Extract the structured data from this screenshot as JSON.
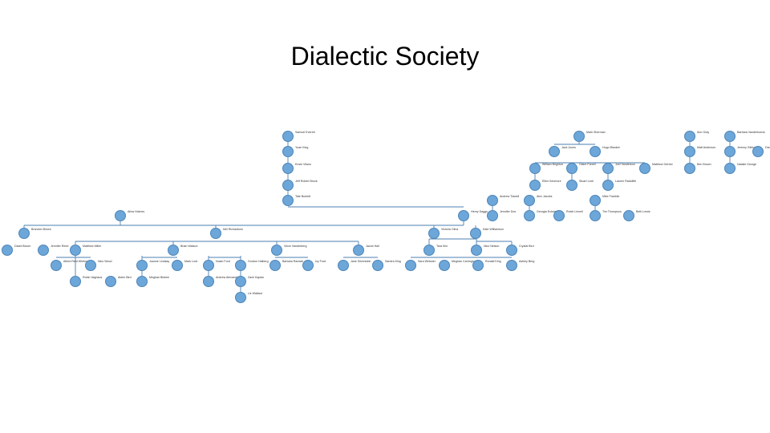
{
  "title": "Dialectic Society",
  "nodes": [
    {
      "id": "n1",
      "label": "Samuel Everett"
    },
    {
      "id": "n2",
      "label": "Mark Sherman"
    },
    {
      "id": "n3",
      "label": "Ann Gray"
    },
    {
      "id": "n4",
      "label": "Barbara Vanderhoeck"
    },
    {
      "id": "n5",
      "label": "Yuan King"
    },
    {
      "id": "n6",
      "label": "Jack Jones"
    },
    {
      "id": "n7",
      "label": "Hugo Blanket"
    },
    {
      "id": "n8",
      "label": "Matt Anderson"
    },
    {
      "id": "n9",
      "label": "Jeremy Gibbons"
    },
    {
      "id": "n10",
      "label": "Daniel Waxwell"
    },
    {
      "id": "n11",
      "label": "Erwin Vilano"
    },
    {
      "id": "n12",
      "label": "William Brighton"
    },
    {
      "id": "n13",
      "label": "Claire Farrell"
    },
    {
      "id": "n14",
      "label": "Joel Vanderson"
    },
    {
      "id": "n15",
      "label": "Matthew Gerber"
    },
    {
      "id": "n16",
      "label": "Ben Brown"
    },
    {
      "id": "n17",
      "label": "Natalie George"
    },
    {
      "id": "n18",
      "label": "Jeff Robert Brock"
    },
    {
      "id": "n19",
      "label": "Ellen Kenmore"
    },
    {
      "id": "n20",
      "label": "Stuart Leaf"
    },
    {
      "id": "n21",
      "label": "Lauren Radcliffe"
    },
    {
      "id": "n22",
      "label": "Tate Burkett"
    },
    {
      "id": "n23",
      "label": "Andrew Tidwell"
    },
    {
      "id": "n24",
      "label": "Alex Jacobs"
    },
    {
      "id": "n25",
      "label": "Mike Franklin"
    },
    {
      "id": "n26",
      "label": "Alina Holmes"
    },
    {
      "id": "n27",
      "label": "Henry Daggs"
    },
    {
      "id": "n28",
      "label": "Jennifer Doe"
    },
    {
      "id": "n29",
      "label": "Georgia Eckstein"
    },
    {
      "id": "n30",
      "label": "Robin Linnell"
    },
    {
      "id": "n31",
      "label": "Tim Thompson"
    },
    {
      "id": "n32",
      "label": "Beth Lewis"
    },
    {
      "id": "n33",
      "label": "Brandon Brown"
    },
    {
      "id": "n34",
      "label": "Mel Richardson"
    },
    {
      "id": "n35",
      "label": "Victoria Oliva"
    },
    {
      "id": "n36",
      "label": "Kate Williamson"
    },
    {
      "id": "n37",
      "label": "David Bloom"
    },
    {
      "id": "n38",
      "label": "Jennifer Reed"
    },
    {
      "id": "n39",
      "label": "Matthew Miller"
    },
    {
      "id": "n40",
      "label": "Brian Watson"
    },
    {
      "id": "n41",
      "label": "Vince Vanderberg"
    },
    {
      "id": "n42",
      "label": "Jacob Hall"
    },
    {
      "id": "n43",
      "label": "Tara Kim"
    },
    {
      "id": "n44",
      "label": "Nico Nelson"
    },
    {
      "id": "n45",
      "label": "Crystal Bird"
    },
    {
      "id": "n46",
      "label": "Alfred Reid Whitmore"
    },
    {
      "id": "n47",
      "label": "Nico Wood"
    },
    {
      "id": "n48",
      "label": "Joanne Lindsay"
    },
    {
      "id": "n49",
      "label": "Mark Lord"
    },
    {
      "id": "n50",
      "label": "Nolan Ford"
    },
    {
      "id": "n51",
      "label": "Gordon Halberg"
    },
    {
      "id": "n52",
      "label": "Barbara Randall"
    },
    {
      "id": "n53",
      "label": "Ivy Ford"
    },
    {
      "id": "n54",
      "label": "Jane Silverstein"
    },
    {
      "id": "n55",
      "label": "Sandra King"
    },
    {
      "id": "n56",
      "label": "Sara Webster"
    },
    {
      "id": "n57",
      "label": "Meghan Carrington"
    },
    {
      "id": "n58",
      "label": "Ronald King"
    },
    {
      "id": "n59",
      "label": "Ashley Berg"
    },
    {
      "id": "n60",
      "label": "Robin Vaghaus"
    },
    {
      "id": "n61",
      "label": "Aiden Bird"
    },
    {
      "id": "n62",
      "label": "Meghan Bisbee"
    },
    {
      "id": "n63",
      "label": "Andrew Alexander"
    },
    {
      "id": "n64",
      "label": "Zach Kaplan"
    },
    {
      "id": "n65",
      "label": "Liz Wallace"
    }
  ]
}
